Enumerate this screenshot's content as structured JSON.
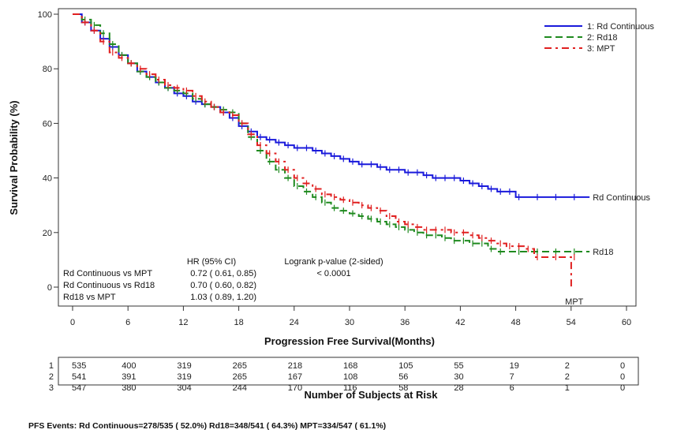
{
  "chart_data": {
    "type": "line",
    "subtype": "kaplan-meier",
    "title": "",
    "xlabel": "Progression Free Survival(Months)",
    "ylabel": "Survival Probability (%)",
    "xlim": [
      0,
      60
    ],
    "ylim": [
      0,
      100
    ],
    "xticks": [
      0,
      6,
      12,
      18,
      24,
      30,
      36,
      42,
      48,
      54,
      60
    ],
    "yticks": [
      0,
      20,
      40,
      60,
      80,
      100
    ],
    "grid": false,
    "legend": {
      "position": "top-right",
      "entries": [
        {
          "label": "1: Rd Continuous",
          "color": "#1a1adb",
          "dash": "solid"
        },
        {
          "label": "2: Rd18",
          "color": "#1f8a1f",
          "dash": "dashed"
        },
        {
          "label": "3: MPT",
          "color": "#e02020",
          "dash": "dash-dot"
        }
      ]
    },
    "series": [
      {
        "name": "Rd Continuous",
        "end_label": "Rd Continuous",
        "color": "#1a1adb",
        "dash": "solid",
        "x": [
          0,
          1,
          2,
          3,
          4,
          5,
          6,
          7,
          8,
          9,
          10,
          11,
          12,
          13,
          14,
          15,
          16,
          17,
          18,
          19,
          20,
          21,
          22,
          23,
          24,
          25,
          26,
          27,
          28,
          29,
          30,
          31,
          32,
          33,
          34,
          35,
          36,
          37,
          38,
          39,
          40,
          41,
          42,
          43,
          44,
          45,
          46,
          47,
          48,
          50,
          52,
          54,
          56
        ],
        "y": [
          100,
          97,
          94,
          91,
          88,
          85,
          82,
          79,
          77,
          75,
          73,
          71,
          70,
          68,
          67,
          66,
          64,
          62,
          59,
          57,
          55,
          54,
          53,
          52,
          51,
          51,
          50,
          49,
          48,
          47,
          46,
          45,
          45,
          44,
          43,
          43,
          42,
          42,
          41,
          40,
          40,
          40,
          39,
          38,
          37,
          36,
          35,
          35,
          33,
          33,
          33,
          33,
          33
        ]
      },
      {
        "name": "Rd18",
        "end_label": "Rd18",
        "color": "#1f8a1f",
        "dash": "dashed",
        "x": [
          0,
          1,
          2,
          3,
          4,
          5,
          6,
          7,
          8,
          9,
          10,
          11,
          12,
          13,
          14,
          15,
          16,
          17,
          18,
          19,
          20,
          21,
          22,
          23,
          24,
          25,
          26,
          27,
          28,
          29,
          30,
          31,
          32,
          33,
          34,
          35,
          36,
          37,
          38,
          39,
          40,
          41,
          42,
          43,
          44,
          45,
          46,
          48,
          50,
          52,
          54,
          56
        ],
        "y": [
          100,
          98,
          96,
          93,
          89,
          85,
          82,
          79,
          77,
          75,
          73,
          72,
          71,
          69,
          67,
          66,
          65,
          64,
          60,
          55,
          50,
          46,
          43,
          40,
          37,
          35,
          33,
          31,
          29,
          28,
          27,
          26,
          25,
          24,
          23,
          22,
          21,
          20,
          19,
          19,
          18,
          17,
          17,
          16,
          16,
          14,
          13,
          13,
          13,
          13,
          13,
          13
        ]
      },
      {
        "name": "MPT",
        "end_label": "MPT",
        "color": "#e02020",
        "dash": "dash-dot",
        "x": [
          0,
          1,
          2,
          3,
          4,
          5,
          6,
          7,
          8,
          9,
          10,
          11,
          12,
          13,
          14,
          15,
          16,
          17,
          18,
          19,
          20,
          21,
          22,
          23,
          24,
          25,
          26,
          27,
          28,
          29,
          30,
          31,
          32,
          33,
          34,
          35,
          36,
          37,
          38,
          39,
          40,
          41,
          42,
          43,
          44,
          45,
          46,
          47,
          48,
          49,
          50,
          52,
          54,
          54.01
        ],
        "y": [
          100,
          97,
          94,
          90,
          86,
          84,
          82,
          80,
          78,
          76,
          74,
          73,
          72,
          70,
          68,
          66,
          64,
          63,
          60,
          56,
          52,
          49,
          46,
          43,
          40,
          38,
          36,
          34,
          33,
          32,
          31,
          30,
          29,
          28,
          26,
          24,
          23,
          22,
          21,
          21,
          21,
          20,
          20,
          19,
          18,
          17,
          16,
          15,
          15,
          14,
          11,
          11,
          11,
          0
        ]
      }
    ],
    "annotations": {
      "hr_header": "HR (95% CI)",
      "logrank_header": "Logrank p-value (2-sided)",
      "logrank_value": "< 0.0001",
      "comparisons": [
        {
          "label": "Rd Continuous vs MPT",
          "hr": "0.72 ( 0.61,  0.85)"
        },
        {
          "label": "Rd Continuous vs Rd18",
          "hr": "0.70 ( 0.60,  0.82)"
        },
        {
          "label": "Rd18 vs MPT",
          "hr": "1.03 ( 0.89,  1.20)"
        }
      ]
    },
    "risk_table": {
      "title": "Number of Subjects at Risk",
      "timepoints": [
        0,
        6,
        12,
        18,
        24,
        30,
        36,
        42,
        48,
        54,
        60
      ],
      "rows": [
        {
          "label": "1",
          "values": [
            "535",
            "400",
            "319",
            "265",
            "218",
            "168",
            "105",
            "55",
            "19",
            "2",
            "0"
          ]
        },
        {
          "label": "2",
          "values": [
            "541",
            "391",
            "319",
            "265",
            "167",
            "108",
            "56",
            "30",
            "7",
            "2",
            "0"
          ]
        },
        {
          "label": "3",
          "values": [
            "547",
            "380",
            "304",
            "244",
            "170",
            "116",
            "58",
            "28",
            "6",
            "1",
            "0"
          ]
        }
      ]
    }
  },
  "footer": {
    "pfs_events": "PFS Events: Rd Continuous=278/535 ( 52.0%) Rd18=348/541 ( 64.3%) MPT=334/547 ( 61.1%)"
  }
}
